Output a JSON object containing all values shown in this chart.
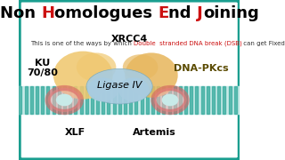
{
  "bg_color": "#ffffff",
  "border_color": "#1a9e8f",
  "stripe_color": "#1a9e8f",
  "stripe_bg": "#c8eae8",
  "blob_left_color": "#f0c870",
  "blob_right_color": "#e8b860",
  "blob_center_color": "#a8cce0",
  "ring_color": "#d96060",
  "ring_fill": "#f0b0b0",
  "title_parts": [
    [
      "Non ",
      "#000000"
    ],
    [
      "H",
      "#cc1111"
    ],
    [
      "omologues ",
      "#000000"
    ],
    [
      "E",
      "#cc1111"
    ],
    [
      "nd ",
      "#000000"
    ],
    [
      "J",
      "#cc1111"
    ],
    [
      "oining",
      "#000000"
    ]
  ],
  "subtitle_black1": "This is one of the ways by which ",
  "subtitle_red": "Double  stranded DNA break (DSB)",
  "subtitle_black2": " can get Fixed",
  "label_ku": "KU\n70/80",
  "label_xrcc4": "XRCC4",
  "label_dnapkcs": "DNA-PKcs",
  "label_ligase": "Ligase IV",
  "label_xlf": "XLF",
  "label_artemis": "Artemis",
  "title_fontsize": 13,
  "subtitle_fontsize": 5,
  "label_fontsize": 8
}
